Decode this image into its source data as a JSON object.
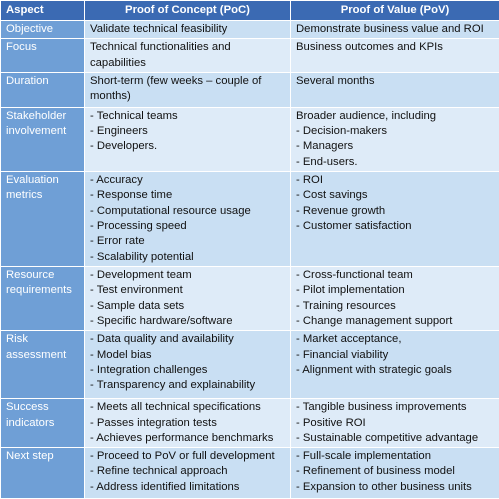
{
  "table": {
    "header": [
      "Aspect",
      "Proof of Concept (PoC)",
      "Proof of Value (PoV)"
    ],
    "rows": [
      {
        "aspect": "Objective",
        "poc": [
          "Validate technical feasibility"
        ],
        "pov": [
          "Demonstrate business value and ROI"
        ]
      },
      {
        "aspect": "Focus",
        "poc": [
          "Technical functionalities and capabilities"
        ],
        "pov": [
          "Business outcomes and KPIs"
        ]
      },
      {
        "aspect": "Duration",
        "poc": [
          "Short-term (few weeks – couple of months)"
        ],
        "pov": [
          "Several months"
        ]
      },
      {
        "aspect": "Stakeholder involvement",
        "poc": [
          "- Technical teams",
          "- Engineers",
          "- Developers."
        ],
        "pov": [
          "Broader audience, including",
          "- Decision-makers",
          "- Managers",
          "- End-users."
        ]
      },
      {
        "aspect": "Evaluation metrics",
        "poc": [
          "- Accuracy",
          "- Response time",
          "- Computational resource usage",
          "- Processing speed",
          "- Error rate",
          "- Scalability potential"
        ],
        "pov": [
          "- ROI",
          "- Cost savings",
          "- Revenue growth",
          "- Customer satisfaction"
        ]
      },
      {
        "aspect": "Resource requirements",
        "poc": [
          "- Development team",
          "- Test environment",
          "- Sample data sets",
          "- Specific hardware/software"
        ],
        "pov": [
          "- Cross-functional team",
          "- Pilot implementation",
          "- Training resources",
          "- Change management support"
        ]
      },
      {
        "aspect": "Risk assessment",
        "poc": [
          "- Data quality and availability",
          "- Model bias",
          "- Integration challenges",
          "- Transparency and explainability"
        ],
        "pov": [
          "- Market acceptance,",
          "- Financial viability",
          "- Alignment with strategic goals"
        ]
      },
      {
        "aspect": "Success indicators",
        "poc": [
          "- Meets all technical specifications",
          "- Passes integration tests",
          "- Achieves performance benchmarks"
        ],
        "pov": [
          "- Tangible business improvements",
          "- Positive ROI",
          "- Sustainable competitive advantage"
        ]
      },
      {
        "aspect": "Next step",
        "poc": [
          "- Proceed to PoV or full development",
          "- Refine technical approach",
          "- Address identified limitations"
        ],
        "pov": [
          "- Full-scale implementation",
          "- Refinement of business model",
          "- Expansion to other business units"
        ]
      }
    ]
  }
}
